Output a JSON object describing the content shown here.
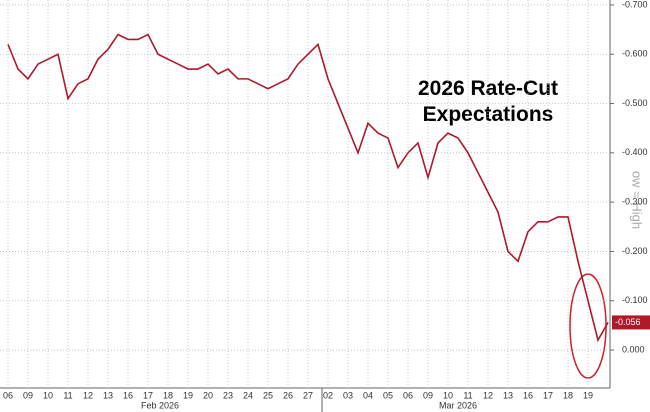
{
  "chart_data": {
    "type": "line",
    "title": "2026 Rate-Cut Expectations",
    "axis_note": "ow = High",
    "months": [
      "Feb 2026",
      "Mar 2026"
    ],
    "categories": [
      "06",
      null,
      "09",
      null,
      "10",
      null,
      "11",
      null,
      "12",
      null,
      "13",
      null,
      "16",
      null,
      "17",
      null,
      "18",
      null,
      "19",
      null,
      "20",
      null,
      "23",
      null,
      "24",
      null,
      "25",
      null,
      "26",
      null,
      "27",
      null,
      "02",
      null,
      "03",
      null,
      "04",
      null,
      "05",
      null,
      "06",
      null,
      "09",
      null,
      "10",
      null,
      "11",
      null,
      "12",
      null,
      "13",
      null,
      "16",
      null,
      "17",
      null,
      "18",
      null,
      "19",
      null,
      null
    ],
    "series": [
      {
        "name": "2026 Rate-Cut Expectations",
        "color": "#b0182a",
        "values": [
          -0.62,
          -0.57,
          -0.55,
          -0.58,
          -0.59,
          -0.6,
          -0.51,
          -0.54,
          -0.55,
          -0.59,
          -0.61,
          -0.64,
          -0.63,
          -0.63,
          -0.64,
          -0.6,
          -0.59,
          -0.58,
          -0.57,
          -0.57,
          -0.58,
          -0.56,
          -0.57,
          -0.55,
          -0.55,
          -0.54,
          -0.53,
          -0.54,
          -0.55,
          -0.58,
          -0.6,
          -0.62,
          -0.55,
          -0.5,
          -0.45,
          -0.4,
          -0.46,
          -0.44,
          -0.43,
          -0.37,
          -0.4,
          -0.42,
          -0.35,
          -0.42,
          -0.44,
          -0.43,
          -0.4,
          -0.36,
          -0.32,
          -0.28,
          -0.2,
          -0.18,
          -0.24,
          -0.26,
          -0.26,
          -0.27,
          -0.27,
          -0.18,
          -0.1,
          -0.02,
          -0.056
        ]
      }
    ],
    "ylim": [
      0.077,
      -0.71
    ],
    "yticks": [
      {
        "value": -0.7,
        "label": "-0.700"
      },
      {
        "value": -0.6,
        "label": "-0.600"
      },
      {
        "value": -0.5,
        "label": "-0.500"
      },
      {
        "value": -0.4,
        "label": "-0.400"
      },
      {
        "value": -0.3,
        "label": "-0.300"
      },
      {
        "value": -0.2,
        "label": "-0.200"
      },
      {
        "value": -0.1,
        "label": "-0.100"
      },
      {
        "value": 0,
        "label": "0.000"
      }
    ],
    "grid": true
  }
}
